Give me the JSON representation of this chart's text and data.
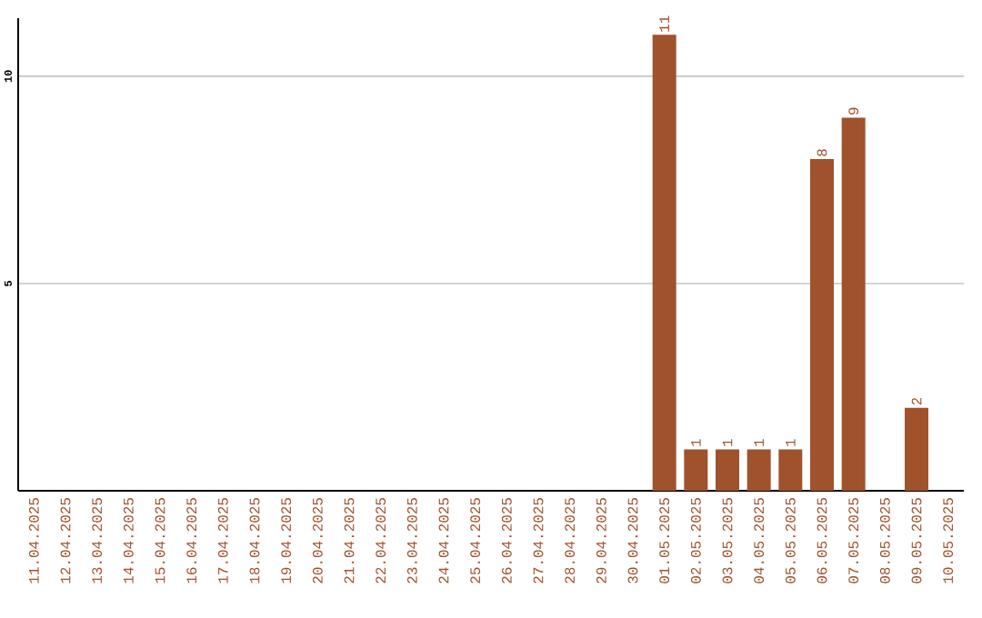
{
  "chart_data": {
    "type": "bar",
    "categories": [
      "11.04.2025",
      "12.04.2025",
      "13.04.2025",
      "14.04.2025",
      "15.04.2025",
      "16.04.2025",
      "17.04.2025",
      "18.04.2025",
      "19.04.2025",
      "20.04.2025",
      "21.04.2025",
      "22.04.2025",
      "23.04.2025",
      "24.04.2025",
      "25.04.2025",
      "26.04.2025",
      "27.04.2025",
      "28.04.2025",
      "29.04.2025",
      "30.04.2025",
      "01.05.2025",
      "02.05.2025",
      "03.05.2025",
      "04.05.2025",
      "05.05.2025",
      "06.05.2025",
      "07.05.2025",
      "08.05.2025",
      "09.05.2025",
      "10.05.2025"
    ],
    "values": [
      0,
      0,
      0,
      0,
      0,
      0,
      0,
      0,
      0,
      0,
      0,
      0,
      0,
      0,
      0,
      0,
      0,
      0,
      0,
      0,
      11,
      1,
      1,
      1,
      1,
      8,
      9,
      0,
      2,
      0
    ],
    "value_labels": [
      null,
      null,
      null,
      null,
      null,
      null,
      null,
      null,
      null,
      null,
      null,
      null,
      null,
      null,
      null,
      null,
      null,
      null,
      null,
      null,
      "11",
      "1",
      "1",
      "1",
      "1",
      "8",
      "9",
      null,
      "2",
      null
    ],
    "color": "#a0522d",
    "ylim": [
      0,
      11.4
    ],
    "yticks": [
      5,
      10
    ],
    "grid": "y"
  }
}
